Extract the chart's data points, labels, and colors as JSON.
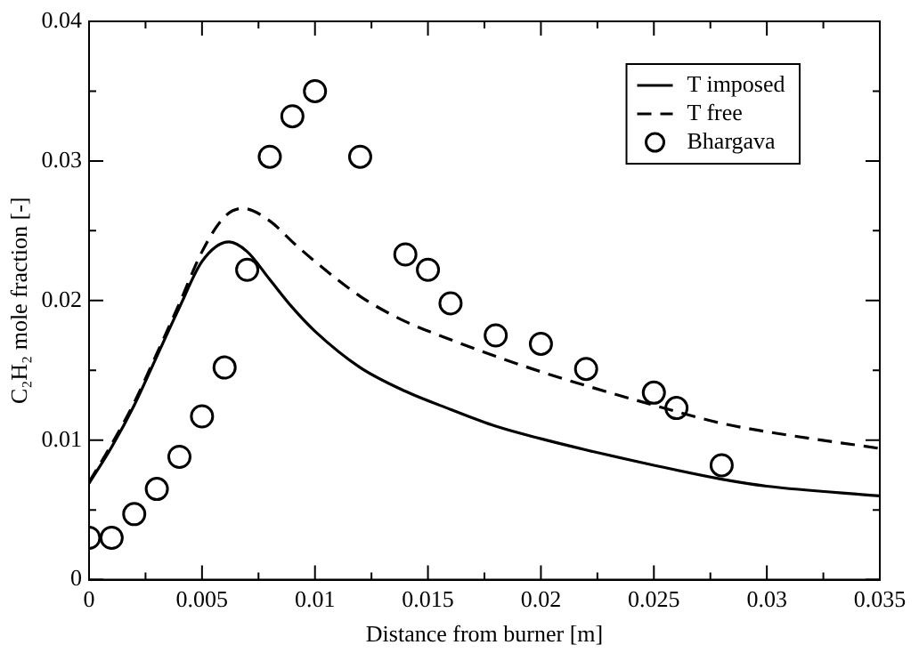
{
  "chart_data": {
    "type": "line",
    "xlabel": "Distance from burner [m]",
    "ylabel": "C₂H₂ mole fraction [-]",
    "xlim": [
      0,
      0.035
    ],
    "ylim": [
      0,
      0.04
    ],
    "xticks": [
      0,
      {
        "value": 0.0025,
        "label": null
      },
      0.005,
      {
        "value": 0.0075,
        "label": null
      },
      0.01,
      {
        "value": 0.0125,
        "label": null
      },
      0.015,
      {
        "value": 0.0175,
        "label": null
      },
      0.02,
      {
        "value": 0.0225,
        "label": null
      },
      0.025,
      {
        "value": 0.0275,
        "label": null
      },
      0.03,
      {
        "value": 0.0325,
        "label": null
      },
      0.035
    ],
    "yticks": [
      0,
      {
        "value": 0.005,
        "label": null
      },
      0.01,
      {
        "value": 0.015,
        "label": null
      },
      0.02,
      {
        "value": 0.025,
        "label": null
      },
      0.03,
      {
        "value": 0.035,
        "label": null
      },
      0.04
    ],
    "grid": false,
    "legend": "top right",
    "series": [
      {
        "name": "T imposed",
        "color": "#000000",
        "line_style": "solid",
        "marker": "none",
        "x": [
          0,
          0.001,
          0.002,
          0.003,
          0.004,
          0.005,
          0.0062,
          0.007,
          0.008,
          0.009,
          0.01,
          0.012,
          0.014,
          0.016,
          0.018,
          0.02,
          0.022,
          0.025,
          0.028,
          0.03,
          0.035
        ],
        "values": [
          0.0069,
          0.0095,
          0.0125,
          0.016,
          0.0195,
          0.0228,
          0.0242,
          0.0235,
          0.0215,
          0.0195,
          0.0178,
          0.0152,
          0.0135,
          0.0122,
          0.011,
          0.0101,
          0.0093,
          0.0082,
          0.0072,
          0.0067,
          0.006
        ]
      },
      {
        "name": "T free",
        "color": "#000000",
        "line_style": "dashed",
        "marker": "none",
        "x": [
          0,
          0.001,
          0.002,
          0.003,
          0.004,
          0.005,
          0.006,
          0.0068,
          0.008,
          0.009,
          0.01,
          0.012,
          0.014,
          0.016,
          0.018,
          0.02,
          0.022,
          0.025,
          0.028,
          0.03,
          0.035
        ],
        "values": [
          0.007,
          0.0097,
          0.0127,
          0.0162,
          0.0198,
          0.0235,
          0.026,
          0.0266,
          0.0257,
          0.0242,
          0.0228,
          0.0203,
          0.0185,
          0.0172,
          0.016,
          0.0149,
          0.0139,
          0.0125,
          0.0112,
          0.0106,
          0.0094
        ]
      },
      {
        "name": "Bhargava",
        "type": "scatter",
        "color": "#000000",
        "marker": "circle",
        "x": [
          0,
          0.001,
          0.002,
          0.003,
          0.004,
          0.005,
          0.006,
          0.007,
          0.008,
          0.009,
          0.01,
          0.012,
          0.014,
          0.015,
          0.016,
          0.018,
          0.02,
          0.022,
          0.025,
          0.026,
          0.028
        ],
        "values": [
          0.003,
          0.003,
          0.0047,
          0.0065,
          0.0088,
          0.0117,
          0.0152,
          0.0222,
          0.0303,
          0.0332,
          0.035,
          0.0303,
          0.0233,
          0.0222,
          0.0198,
          0.0175,
          0.0169,
          0.0151,
          0.0134,
          0.0123,
          0.0082
        ]
      }
    ]
  }
}
